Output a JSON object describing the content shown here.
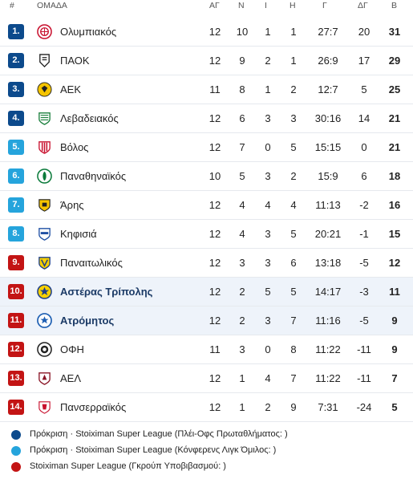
{
  "header": {
    "rank": "#",
    "team": "ΟΜΑΔΑ",
    "played": "ΑΓ",
    "won": "Ν",
    "drawn": "Ι",
    "lost": "Η",
    "goals": "Γ",
    "diff": "ΔΓ",
    "points": "Β"
  },
  "colors": {
    "playoff": "#0c4a8c",
    "league_group": "#25a4dc",
    "relegation": "#c31414",
    "highlight_row": "#eef3fa"
  },
  "rows": [
    {
      "rank": "1.",
      "team": "Ολυμπιακός",
      "played": "12",
      "won": "10",
      "drawn": "1",
      "lost": "1",
      "goals": "27:7",
      "diff": "20",
      "points": "31",
      "zone": "playoff",
      "logo": "olympiacos-logo",
      "highlight": false
    },
    {
      "rank": "2.",
      "team": "ΠΑΟΚ",
      "played": "12",
      "won": "9",
      "drawn": "2",
      "lost": "1",
      "goals": "26:9",
      "diff": "17",
      "points": "29",
      "zone": "playoff",
      "logo": "paok-logo",
      "highlight": false
    },
    {
      "rank": "3.",
      "team": "ΑΕΚ",
      "played": "11",
      "won": "8",
      "drawn": "1",
      "lost": "2",
      "goals": "12:7",
      "diff": "5",
      "points": "25",
      "zone": "playoff",
      "logo": "aek-logo",
      "highlight": false
    },
    {
      "rank": "4.",
      "team": "Λεβαδειακός",
      "played": "12",
      "won": "6",
      "drawn": "3",
      "lost": "3",
      "goals": "30:16",
      "diff": "14",
      "points": "21",
      "zone": "playoff",
      "logo": "levadiakos-logo",
      "highlight": false
    },
    {
      "rank": "5.",
      "team": "Βόλος",
      "played": "12",
      "won": "7",
      "drawn": "0",
      "lost": "5",
      "goals": "15:15",
      "diff": "0",
      "points": "21",
      "zone": "league_group",
      "logo": "volos-logo",
      "highlight": false
    },
    {
      "rank": "6.",
      "team": "Παναθηναϊκός",
      "played": "10",
      "won": "5",
      "drawn": "3",
      "lost": "2",
      "goals": "15:9",
      "diff": "6",
      "points": "18",
      "zone": "league_group",
      "logo": "panathinaikos-logo",
      "highlight": false
    },
    {
      "rank": "7.",
      "team": "Άρης",
      "played": "12",
      "won": "4",
      "drawn": "4",
      "lost": "4",
      "goals": "11:13",
      "diff": "-2",
      "points": "16",
      "zone": "league_group",
      "logo": "aris-logo",
      "highlight": false
    },
    {
      "rank": "8.",
      "team": "Κηφισιά",
      "played": "12",
      "won": "4",
      "drawn": "3",
      "lost": "5",
      "goals": "20:21",
      "diff": "-1",
      "points": "15",
      "zone": "league_group",
      "logo": "kifisia-logo",
      "highlight": false
    },
    {
      "rank": "9.",
      "team": "Παναιτωλικός",
      "played": "12",
      "won": "3",
      "drawn": "3",
      "lost": "6",
      "goals": "13:18",
      "diff": "-5",
      "points": "12",
      "zone": "relegation",
      "logo": "panetolikos-logo",
      "highlight": false
    },
    {
      "rank": "10.",
      "team": "Αστέρας Τρίπολης",
      "played": "12",
      "won": "2",
      "drawn": "5",
      "lost": "5",
      "goals": "14:17",
      "diff": "-3",
      "points": "11",
      "zone": "relegation",
      "logo": "asteras-logo",
      "highlight": true
    },
    {
      "rank": "11.",
      "team": "Ατρόμητος",
      "played": "12",
      "won": "2",
      "drawn": "3",
      "lost": "7",
      "goals": "11:16",
      "diff": "-5",
      "points": "9",
      "zone": "relegation",
      "logo": "atromitos-logo",
      "highlight": true
    },
    {
      "rank": "12.",
      "team": "ΟΦΗ",
      "played": "11",
      "won": "3",
      "drawn": "0",
      "lost": "8",
      "goals": "11:22",
      "diff": "-11",
      "points": "9",
      "zone": "relegation",
      "logo": "ofi-logo",
      "highlight": false
    },
    {
      "rank": "13.",
      "team": "ΑΕΛ",
      "played": "12",
      "won": "1",
      "drawn": "4",
      "lost": "7",
      "goals": "11:22",
      "diff": "-11",
      "points": "7",
      "zone": "relegation",
      "logo": "ael-logo",
      "highlight": false
    },
    {
      "rank": "14.",
      "team": "Πανσερραϊκός",
      "played": "12",
      "won": "1",
      "drawn": "2",
      "lost": "9",
      "goals": "7:31",
      "diff": "-24",
      "points": "5",
      "zone": "relegation",
      "logo": "panserraikos-logo",
      "highlight": false
    }
  ],
  "legend": [
    {
      "zone": "playoff",
      "text": "Πρόκριση · Stoiximan Super League (Πλέι-Οφς Πρωταθλήματος: )"
    },
    {
      "zone": "league_group",
      "text": "Πρόκριση · Stoiximan Super League (Κόνφερενς Λιγκ Όμιλος: )"
    },
    {
      "zone": "relegation",
      "text": "Stoiximan Super League (Γκρούπ Υποβιβασμού: )"
    }
  ]
}
